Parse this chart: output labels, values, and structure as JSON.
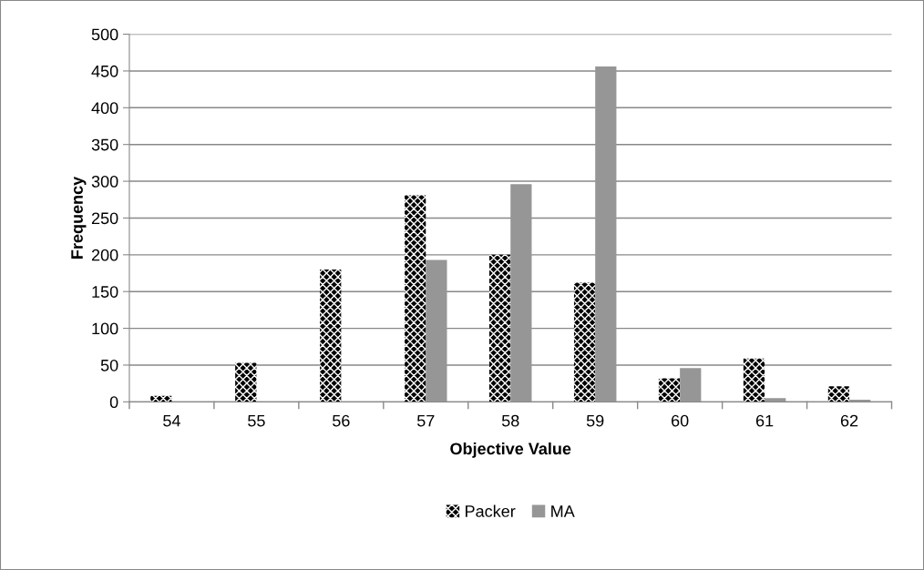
{
  "chart_data": {
    "type": "bar",
    "xlabel": "Objective Value",
    "ylabel": "Frequency",
    "categories": [
      "54",
      "55",
      "56",
      "57",
      "58",
      "59",
      "60",
      "61",
      "62"
    ],
    "series": [
      {
        "name": "Packer",
        "color": "#000000",
        "values": [
          8,
          53,
          180,
          281,
          200,
          162,
          32,
          59,
          21
        ]
      },
      {
        "name": "MA",
        "color": "#969696",
        "values": [
          0,
          0,
          0,
          193,
          296,
          456,
          46,
          5,
          3
        ]
      }
    ],
    "ylim": [
      0,
      500
    ],
    "yticks": [
      0,
      50,
      100,
      150,
      200,
      250,
      300,
      350,
      400,
      450,
      500
    ],
    "grid": "y",
    "legend": "bottom"
  }
}
